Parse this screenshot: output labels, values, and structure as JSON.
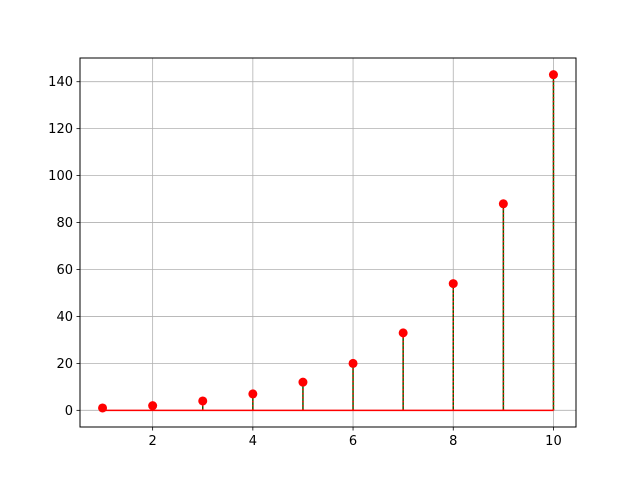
{
  "chart_data": {
    "type": "stem",
    "title": "",
    "xlabel": "",
    "ylabel": "",
    "x": [
      1,
      2,
      3,
      4,
      5,
      6,
      7,
      8,
      9,
      10
    ],
    "y": [
      1,
      2,
      4,
      7,
      12,
      20,
      33,
      54,
      88,
      143
    ],
    "xlim": [
      0.55,
      10.45
    ],
    "ylim": [
      -7.1,
      150.1
    ],
    "x_ticks": [
      2,
      4,
      6,
      8,
      10
    ],
    "y_ticks": [
      0,
      20,
      40,
      60,
      80,
      100,
      120,
      140
    ],
    "grid": true,
    "legend": "none",
    "baseline": 0,
    "colors": {
      "stem_line": "#006400",
      "stem_dash": "#ff0000",
      "marker": "#ff0000",
      "baseline": "#ff0000",
      "grid": "#b0b0b0",
      "axes": "#000000"
    }
  }
}
